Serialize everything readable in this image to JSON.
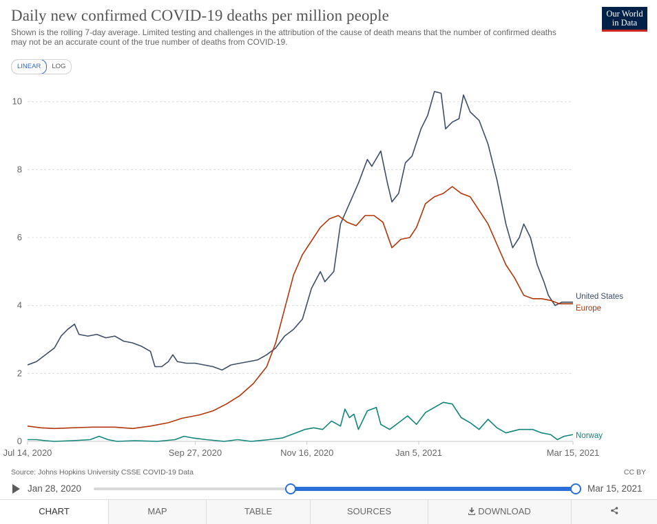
{
  "title": "Daily new confirmed COVID-19 deaths per million people",
  "subtitle": "Shown is the rolling 7-day average. Limited testing and challenges in the attribution of the cause of death means that the number of confirmed deaths may not be an accurate count of the true number of deaths from COVID-19.",
  "logo": {
    "line1": "Our World",
    "line2": "in Data"
  },
  "scale_toggle": {
    "linear": "LINEAR",
    "log": "LOG",
    "selected": "LINEAR"
  },
  "source": "Source: Johns Hopkins University CSSE COVID-19 Data",
  "license": "CC BY",
  "timeline": {
    "start_label": "Jan 28, 2020",
    "end_label": "Mar 15, 2021",
    "selected_start": "Jul 14, 2020",
    "selected_end": "Mar 15, 2021"
  },
  "tabs": [
    "CHART",
    "MAP",
    "TABLE",
    "SOURCES",
    "DOWNLOAD",
    ""
  ],
  "active_tab": "CHART",
  "icons": {
    "play": "play-icon",
    "download": "download-icon",
    "share": "share-icon"
  },
  "chart_data": {
    "type": "line",
    "x_start": "2020-07-14",
    "x_end": "2021-03-15",
    "ylim": [
      0,
      10.4
    ],
    "yticks": [
      0,
      2,
      4,
      6,
      8,
      10
    ],
    "xticks": [
      {
        "date": "2020-07-14",
        "label": "Jul 14, 2020"
      },
      {
        "date": "2020-09-27",
        "label": "Sep 27, 2020"
      },
      {
        "date": "2020-11-16",
        "label": "Nov 16, 2020"
      },
      {
        "date": "2021-01-05",
        "label": "Jan 5, 2021"
      },
      {
        "date": "2021-03-15",
        "label": "Mar 15, 2021"
      }
    ],
    "grid": true,
    "legend": "end-of-line labels",
    "series": [
      {
        "name": "United States",
        "color": "#3c4c66",
        "points": [
          [
            "2020-07-14",
            2.25
          ],
          [
            "2020-07-18",
            2.35
          ],
          [
            "2020-07-22",
            2.55
          ],
          [
            "2020-07-26",
            2.75
          ],
          [
            "2020-07-29",
            3.1
          ],
          [
            "2020-08-01",
            3.3
          ],
          [
            "2020-08-04",
            3.45
          ],
          [
            "2020-08-06",
            3.15
          ],
          [
            "2020-08-10",
            3.1
          ],
          [
            "2020-08-14",
            3.15
          ],
          [
            "2020-08-18",
            3.05
          ],
          [
            "2020-08-22",
            3.1
          ],
          [
            "2020-08-26",
            2.95
          ],
          [
            "2020-08-30",
            2.9
          ],
          [
            "2020-09-03",
            2.8
          ],
          [
            "2020-09-07",
            2.65
          ],
          [
            "2020-09-09",
            2.2
          ],
          [
            "2020-09-12",
            2.2
          ],
          [
            "2020-09-15",
            2.35
          ],
          [
            "2020-09-17",
            2.55
          ],
          [
            "2020-09-19",
            2.35
          ],
          [
            "2020-09-23",
            2.3
          ],
          [
            "2020-09-27",
            2.3
          ],
          [
            "2020-10-01",
            2.25
          ],
          [
            "2020-10-05",
            2.2
          ],
          [
            "2020-10-09",
            2.1
          ],
          [
            "2020-10-13",
            2.25
          ],
          [
            "2020-10-17",
            2.3
          ],
          [
            "2020-10-21",
            2.35
          ],
          [
            "2020-10-25",
            2.4
          ],
          [
            "2020-10-29",
            2.55
          ],
          [
            "2020-11-02",
            2.75
          ],
          [
            "2020-11-06",
            3.1
          ],
          [
            "2020-11-10",
            3.3
          ],
          [
            "2020-11-14",
            3.6
          ],
          [
            "2020-11-18",
            4.5
          ],
          [
            "2020-11-22",
            5.0
          ],
          [
            "2020-11-24",
            4.7
          ],
          [
            "2020-11-28",
            5.0
          ],
          [
            "2020-12-01",
            6.4
          ],
          [
            "2020-12-05",
            7.0
          ],
          [
            "2020-12-09",
            7.6
          ],
          [
            "2020-12-13",
            8.3
          ],
          [
            "2020-12-15",
            8.1
          ],
          [
            "2020-12-19",
            8.55
          ],
          [
            "2020-12-22",
            7.6
          ],
          [
            "2020-12-24",
            7.05
          ],
          [
            "2020-12-27",
            7.3
          ],
          [
            "2020-12-30",
            8.2
          ],
          [
            "2021-01-02",
            8.4
          ],
          [
            "2021-01-06",
            9.2
          ],
          [
            "2021-01-09",
            9.6
          ],
          [
            "2021-01-12",
            10.3
          ],
          [
            "2021-01-15",
            10.25
          ],
          [
            "2021-01-17",
            9.2
          ],
          [
            "2021-01-20",
            9.4
          ],
          [
            "2021-01-23",
            9.5
          ],
          [
            "2021-01-25",
            10.2
          ],
          [
            "2021-01-28",
            9.7
          ],
          [
            "2021-02-01",
            9.45
          ],
          [
            "2021-02-05",
            8.75
          ],
          [
            "2021-02-09",
            7.7
          ],
          [
            "2021-02-13",
            6.4
          ],
          [
            "2021-02-16",
            5.7
          ],
          [
            "2021-02-19",
            6.0
          ],
          [
            "2021-02-21",
            6.4
          ],
          [
            "2021-02-24",
            6.0
          ],
          [
            "2021-02-27",
            5.2
          ],
          [
            "2021-03-02",
            4.7
          ],
          [
            "2021-03-04",
            4.3
          ],
          [
            "2021-03-07",
            4.0
          ],
          [
            "2021-03-10",
            4.1
          ],
          [
            "2021-03-15",
            4.1
          ]
        ]
      },
      {
        "name": "Europe",
        "color": "#b13507",
        "points": [
          [
            "2020-07-14",
            0.45
          ],
          [
            "2020-07-20",
            0.4
          ],
          [
            "2020-07-26",
            0.38
          ],
          [
            "2020-08-03",
            0.4
          ],
          [
            "2020-08-12",
            0.42
          ],
          [
            "2020-08-22",
            0.42
          ],
          [
            "2020-08-30",
            0.38
          ],
          [
            "2020-09-07",
            0.45
          ],
          [
            "2020-09-15",
            0.55
          ],
          [
            "2020-09-21",
            0.68
          ],
          [
            "2020-09-29",
            0.78
          ],
          [
            "2020-10-05",
            0.9
          ],
          [
            "2020-10-11",
            1.1
          ],
          [
            "2020-10-17",
            1.35
          ],
          [
            "2020-10-23",
            1.7
          ],
          [
            "2020-10-29",
            2.2
          ],
          [
            "2020-11-02",
            2.9
          ],
          [
            "2020-11-06",
            3.9
          ],
          [
            "2020-11-10",
            4.9
          ],
          [
            "2020-11-14",
            5.5
          ],
          [
            "2020-11-18",
            5.9
          ],
          [
            "2020-11-22",
            6.3
          ],
          [
            "2020-11-26",
            6.55
          ],
          [
            "2020-11-30",
            6.65
          ],
          [
            "2020-12-04",
            6.45
          ],
          [
            "2020-12-08",
            6.35
          ],
          [
            "2020-12-12",
            6.65
          ],
          [
            "2020-12-16",
            6.65
          ],
          [
            "2020-12-20",
            6.45
          ],
          [
            "2020-12-24",
            5.7
          ],
          [
            "2020-12-28",
            5.95
          ],
          [
            "2021-01-01",
            6.0
          ],
          [
            "2021-01-04",
            6.3
          ],
          [
            "2021-01-08",
            7.0
          ],
          [
            "2021-01-12",
            7.2
          ],
          [
            "2021-01-16",
            7.3
          ],
          [
            "2021-01-20",
            7.5
          ],
          [
            "2021-01-24",
            7.3
          ],
          [
            "2021-01-28",
            7.2
          ],
          [
            "2021-02-01",
            6.8
          ],
          [
            "2021-02-05",
            6.4
          ],
          [
            "2021-02-09",
            5.8
          ],
          [
            "2021-02-13",
            5.2
          ],
          [
            "2021-02-17",
            4.8
          ],
          [
            "2021-02-21",
            4.3
          ],
          [
            "2021-02-25",
            4.2
          ],
          [
            "2021-03-01",
            4.2
          ],
          [
            "2021-03-05",
            4.15
          ],
          [
            "2021-03-09",
            4.05
          ],
          [
            "2021-03-15",
            4.05
          ]
        ]
      },
      {
        "name": "Norway",
        "color": "#0f8478",
        "points": [
          [
            "2020-07-14",
            0.05
          ],
          [
            "2020-07-18",
            0.05
          ],
          [
            "2020-07-22",
            0.02
          ],
          [
            "2020-07-26",
            0.0
          ],
          [
            "2020-08-03",
            0.02
          ],
          [
            "2020-08-11",
            0.05
          ],
          [
            "2020-08-15",
            0.15
          ],
          [
            "2020-08-19",
            0.05
          ],
          [
            "2020-08-23",
            0.0
          ],
          [
            "2020-08-31",
            0.02
          ],
          [
            "2020-09-10",
            0.0
          ],
          [
            "2020-09-18",
            0.05
          ],
          [
            "2020-09-22",
            0.15
          ],
          [
            "2020-09-26",
            0.1
          ],
          [
            "2020-10-02",
            0.05
          ],
          [
            "2020-10-10",
            0.0
          ],
          [
            "2020-10-16",
            0.05
          ],
          [
            "2020-10-22",
            0.0
          ],
          [
            "2020-10-30",
            0.05
          ],
          [
            "2020-11-05",
            0.1
          ],
          [
            "2020-11-11",
            0.25
          ],
          [
            "2020-11-15",
            0.35
          ],
          [
            "2020-11-19",
            0.4
          ],
          [
            "2020-11-23",
            0.35
          ],
          [
            "2020-11-27",
            0.6
          ],
          [
            "2020-12-01",
            0.45
          ],
          [
            "2020-12-03",
            0.95
          ],
          [
            "2020-12-05",
            0.7
          ],
          [
            "2020-12-07",
            0.8
          ],
          [
            "2020-12-09",
            0.35
          ],
          [
            "2020-12-13",
            0.9
          ],
          [
            "2020-12-17",
            1.0
          ],
          [
            "2020-12-19",
            0.5
          ],
          [
            "2020-12-23",
            0.35
          ],
          [
            "2020-12-27",
            0.55
          ],
          [
            "2020-12-31",
            0.75
          ],
          [
            "2021-01-04",
            0.5
          ],
          [
            "2021-01-08",
            0.85
          ],
          [
            "2021-01-12",
            1.0
          ],
          [
            "2021-01-16",
            1.15
          ],
          [
            "2021-01-20",
            1.1
          ],
          [
            "2021-01-24",
            0.7
          ],
          [
            "2021-01-28",
            0.55
          ],
          [
            "2021-02-01",
            0.35
          ],
          [
            "2021-02-05",
            0.65
          ],
          [
            "2021-02-09",
            0.4
          ],
          [
            "2021-02-13",
            0.25
          ],
          [
            "2021-02-19",
            0.35
          ],
          [
            "2021-02-25",
            0.35
          ],
          [
            "2021-03-01",
            0.25
          ],
          [
            "2021-03-05",
            0.2
          ],
          [
            "2021-03-08",
            0.05
          ],
          [
            "2021-03-11",
            0.15
          ],
          [
            "2021-03-15",
            0.2
          ]
        ]
      }
    ]
  }
}
